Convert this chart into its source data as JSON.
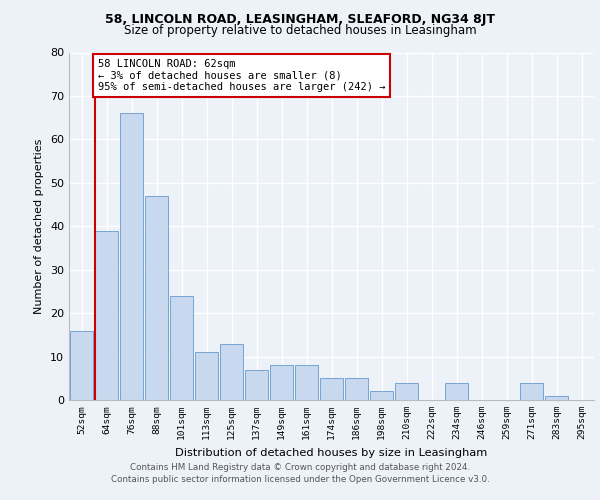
{
  "title1": "58, LINCOLN ROAD, LEASINGHAM, SLEAFORD, NG34 8JT",
  "title2": "Size of property relative to detached houses in Leasingham",
  "xlabel": "Distribution of detached houses by size in Leasingham",
  "ylabel": "Number of detached properties",
  "categories": [
    "52sqm",
    "64sqm",
    "76sqm",
    "88sqm",
    "101sqm",
    "113sqm",
    "125sqm",
    "137sqm",
    "149sqm",
    "161sqm",
    "174sqm",
    "186sqm",
    "198sqm",
    "210sqm",
    "222sqm",
    "234sqm",
    "246sqm",
    "259sqm",
    "271sqm",
    "283sqm",
    "295sqm"
  ],
  "values": [
    16,
    39,
    66,
    47,
    24,
    11,
    13,
    7,
    8,
    8,
    5,
    5,
    2,
    4,
    0,
    4,
    0,
    0,
    4,
    1,
    0
  ],
  "bar_color": "#c8d9ef",
  "bar_edge_color": "#6699cc",
  "marker_line_color": "#cc0000",
  "annotation_text": "58 LINCOLN ROAD: 62sqm\n← 3% of detached houses are smaller (8)\n95% of semi-detached houses are larger (242) →",
  "annotation_box_color": "#ffffff",
  "annotation_box_edge": "#cc0000",
  "ylim": [
    0,
    80
  ],
  "yticks": [
    0,
    10,
    20,
    30,
    40,
    50,
    60,
    70,
    80
  ],
  "footer1": "Contains HM Land Registry data © Crown copyright and database right 2024.",
  "footer2": "Contains public sector information licensed under the Open Government Licence v3.0.",
  "bg_color": "#edf2f9",
  "plot_bg_color": "#edf2f9",
  "grid_color": "#ffffff"
}
